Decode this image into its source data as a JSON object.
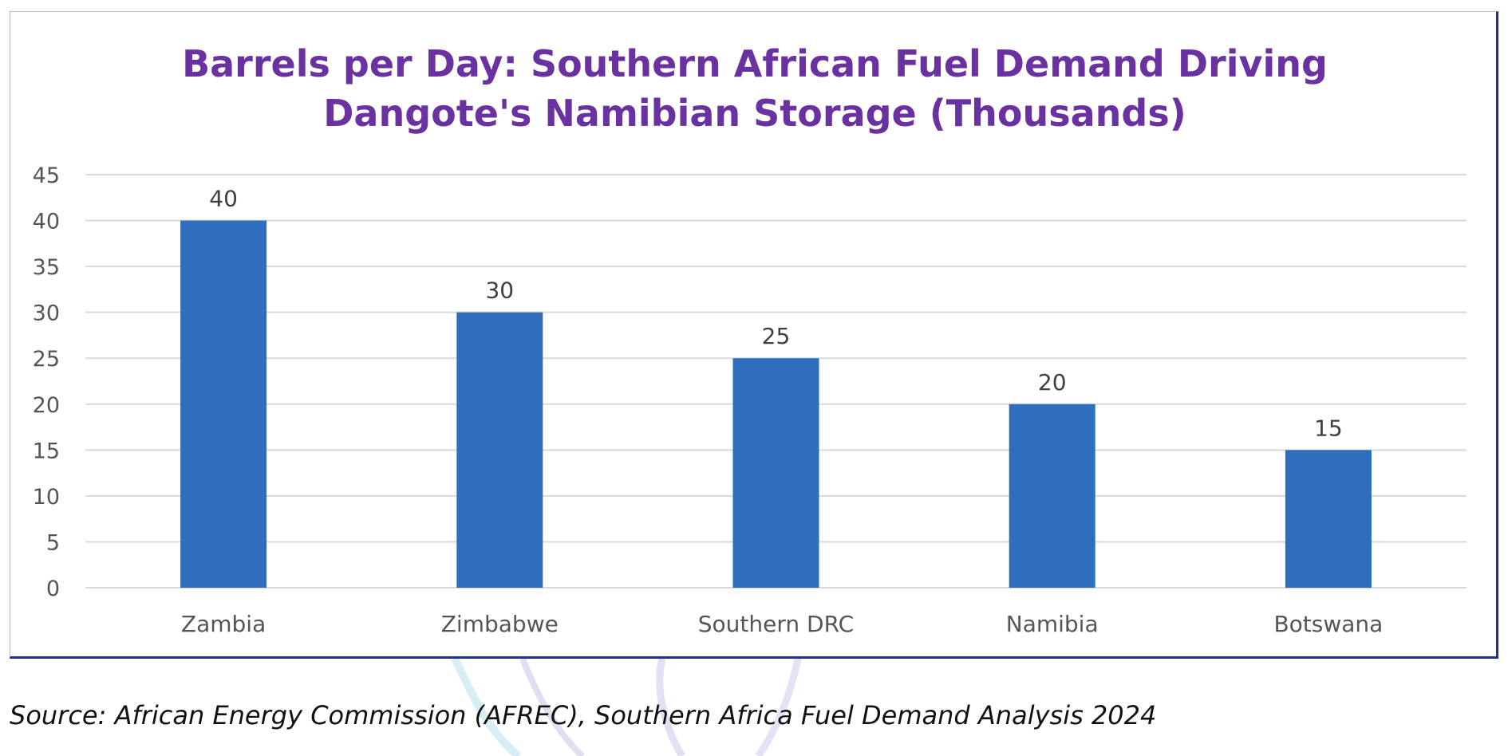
{
  "chart_data": {
    "type": "bar",
    "title_lines": [
      "Barrels per Day: Southern African Fuel Demand Driving",
      "Dangote's Namibian Storage (Thousands)"
    ],
    "categories": [
      "Zambia",
      "Zimbabwe",
      "Southern DRC",
      "Namibia",
      "Botswana"
    ],
    "values": [
      40,
      30,
      25,
      20,
      15
    ],
    "data_labels": [
      "40",
      "30",
      "25",
      "20",
      "15"
    ],
    "ylim": [
      0,
      45
    ],
    "yticks": [
      0,
      5,
      10,
      15,
      20,
      25,
      30,
      35,
      40,
      45
    ],
    "xlabel": "",
    "ylabel": "",
    "grid": true,
    "legend": "none",
    "bar_color": "#2e6ebc",
    "grid_color": "#d9d9d9",
    "title_color": "#6a31a0"
  },
  "source": "Source: African Energy Commission (AFREC), Southern Africa Fuel Demand Analysis 2024"
}
